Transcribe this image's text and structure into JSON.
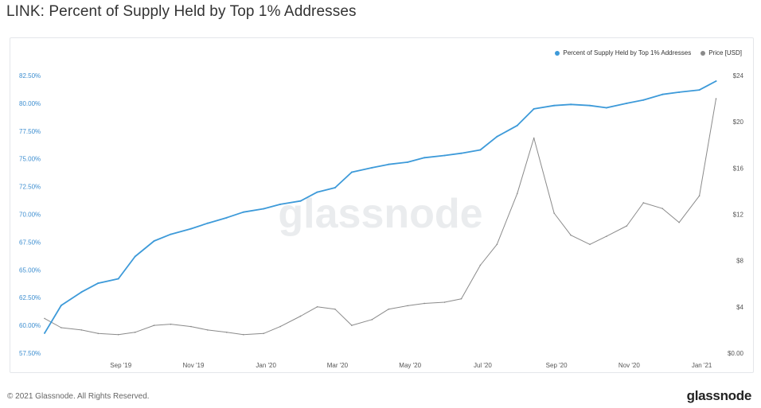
{
  "header": {
    "title": "LINK: Percent of Supply Held by Top 1% Addresses"
  },
  "watermark": "glassnode",
  "footer": {
    "copyright": "© 2021 Glassnode. All Rights Reserved.",
    "logo": "glassnode"
  },
  "colors": {
    "supply": "#3d9ad9",
    "price": "#8a8a8a",
    "left_axis_text": "#3d8ed0"
  },
  "chart_data": {
    "type": "line",
    "title": "LINK: Percent of Supply Held by Top 1% Addresses",
    "x_ticks": [
      "Sep '19",
      "Nov '19",
      "Jan '20",
      "Mar '20",
      "May '20",
      "Jul '20",
      "Sep '20",
      "Nov '20",
      "Jan '21"
    ],
    "x": [
      "2019-07-01",
      "2019-07-15",
      "2019-08-01",
      "2019-08-15",
      "2019-09-01",
      "2019-09-15",
      "2019-10-01",
      "2019-10-15",
      "2019-11-01",
      "2019-11-15",
      "2019-12-01",
      "2019-12-15",
      "2020-01-01",
      "2020-01-15",
      "2020-02-01",
      "2020-02-15",
      "2020-03-01",
      "2020-03-15",
      "2020-04-01",
      "2020-04-15",
      "2020-05-01",
      "2020-05-15",
      "2020-06-01",
      "2020-06-15",
      "2020-07-01",
      "2020-07-15",
      "2020-08-01",
      "2020-08-15",
      "2020-09-01",
      "2020-09-15",
      "2020-10-01",
      "2020-10-15",
      "2020-11-01",
      "2020-11-15",
      "2020-12-01",
      "2020-12-15",
      "2021-01-01",
      "2021-01-15"
    ],
    "series": [
      {
        "name": "Percent of Supply Held by Top 1% Addresses",
        "axis": "left",
        "values": [
          59.3,
          61.8,
          63.0,
          63.8,
          64.2,
          66.2,
          67.6,
          68.2,
          68.7,
          69.2,
          69.7,
          70.2,
          70.5,
          70.9,
          71.2,
          72.0,
          72.4,
          73.8,
          74.2,
          74.5,
          74.7,
          75.1,
          75.3,
          75.5,
          75.8,
          77.0,
          78.0,
          79.5,
          79.8,
          79.9,
          79.8,
          79.6,
          80.0,
          80.3,
          80.8,
          81.0,
          81.2,
          82.0
        ]
      },
      {
        "name": "Price [USD]",
        "axis": "right",
        "values": [
          3.0,
          2.2,
          2.0,
          1.7,
          1.6,
          1.8,
          2.4,
          2.5,
          2.3,
          2.0,
          1.8,
          1.6,
          1.7,
          2.3,
          3.2,
          4.0,
          3.8,
          2.4,
          2.9,
          3.8,
          4.1,
          4.3,
          4.4,
          4.7,
          7.6,
          9.4,
          13.8,
          18.6,
          12.1,
          10.2,
          9.4,
          10.1,
          11.0,
          13.0,
          12.5,
          11.3,
          13.6,
          22.0
        ]
      }
    ],
    "y_left": {
      "ticks": [
        "57.50%",
        "60.00%",
        "62.50%",
        "65.00%",
        "67.50%",
        "70.00%",
        "72.50%",
        "75.00%",
        "77.50%",
        "80.00%",
        "82.50%"
      ],
      "ylim": [
        57.5,
        82.5
      ]
    },
    "y_right": {
      "ticks": [
        "$0.00",
        "$4",
        "$8",
        "$12",
        "$16",
        "$20",
        "$24"
      ],
      "ylim": [
        0,
        24
      ]
    },
    "legend_position": "top-right",
    "grid": false
  }
}
